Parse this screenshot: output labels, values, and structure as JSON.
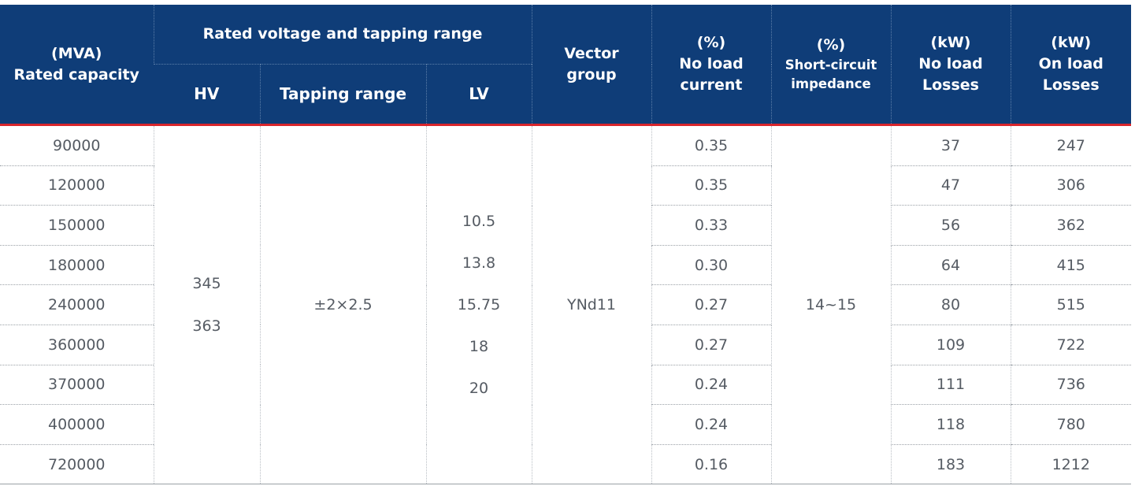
{
  "header": {
    "capacity": [
      "(MVA)",
      "Rated capacity"
    ],
    "voltage_group": "Rated voltage and tapping range",
    "hv": "HV",
    "tapping_range": "Tapping range",
    "lv": "LV",
    "vector_group": [
      "Vector",
      "group"
    ],
    "no_load_current": [
      "(%)",
      "No load",
      "current"
    ],
    "short_circuit": [
      "(%)",
      "Short-circuit",
      "impedance"
    ],
    "no_load_losses": [
      "(kW)",
      "No load",
      "Losses"
    ],
    "on_load_losses": [
      "(kW)",
      "On load",
      "Losses"
    ]
  },
  "merged": {
    "hv_values": [
      "345",
      "363"
    ],
    "tapping_value": "±2×2.5",
    "lv_values": [
      "10.5",
      "13.8",
      "15.75",
      "18",
      "20"
    ],
    "vector_group_value": "YNd11",
    "short_circuit_value": "14~15"
  },
  "rows": [
    {
      "capacity": "90000",
      "no_load_current": "0.35",
      "no_load_losses": "37",
      "on_load_losses": "247"
    },
    {
      "capacity": "120000",
      "no_load_current": "0.35",
      "no_load_losses": "47",
      "on_load_losses": "306"
    },
    {
      "capacity": "150000",
      "no_load_current": "0.33",
      "no_load_losses": "56",
      "on_load_losses": "362"
    },
    {
      "capacity": "180000",
      "no_load_current": "0.30",
      "no_load_losses": "64",
      "on_load_losses": "415"
    },
    {
      "capacity": "240000",
      "no_load_current": "0.27",
      "no_load_losses": "80",
      "on_load_losses": "515"
    },
    {
      "capacity": "360000",
      "no_load_current": "0.27",
      "no_load_losses": "109",
      "on_load_losses": "722"
    },
    {
      "capacity": "370000",
      "no_load_current": "0.24",
      "no_load_losses": "111",
      "on_load_losses": "736"
    },
    {
      "capacity": "400000",
      "no_load_current": "0.24",
      "no_load_losses": "118",
      "on_load_losses": "780"
    },
    {
      "capacity": "720000",
      "no_load_current": "0.16",
      "no_load_losses": "183",
      "on_load_losses": "1212"
    }
  ],
  "colors": {
    "header_bg": "#0f3d78",
    "header_text": "#ffffff",
    "accent_rule": "#d8262c",
    "body_text": "#555b63"
  }
}
